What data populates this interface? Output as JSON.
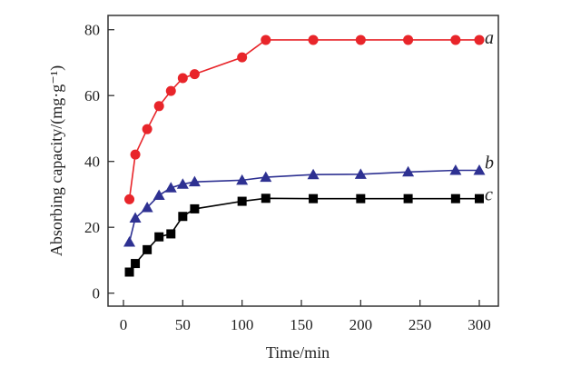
{
  "chart_data": {
    "type": "line",
    "title": "",
    "xlabel": "Time/min",
    "ylabel": "Absorbing capacity/(mg·g⁻¹)",
    "xlim": [
      0,
      300
    ],
    "ylim": [
      0,
      80
    ],
    "xticks": [
      0,
      50,
      100,
      150,
      200,
      250,
      300
    ],
    "yticks": [
      0,
      20,
      40,
      60,
      80
    ],
    "grid": false,
    "x": [
      5,
      10,
      20,
      30,
      40,
      50,
      60,
      100,
      120,
      160,
      200,
      240,
      280,
      300
    ],
    "series": [
      {
        "name": "a",
        "color": "#e8252a",
        "marker": "circle",
        "values": [
          28.5,
          42.1,
          49.8,
          56.8,
          61.4,
          65.3,
          66.5,
          71.6,
          76.9,
          76.9,
          76.9,
          76.9,
          76.9,
          76.9
        ]
      },
      {
        "name": "b",
        "color": "#2e3192",
        "marker": "triangle",
        "values": [
          15.5,
          22.8,
          26.0,
          29.7,
          32.0,
          33.1,
          33.8,
          34.3,
          35.2,
          36.0,
          36.1,
          36.8,
          37.3,
          37.3
        ]
      },
      {
        "name": "c",
        "color": "#000000",
        "marker": "square",
        "values": [
          6.4,
          9.0,
          13.2,
          17.1,
          18.0,
          23.3,
          25.6,
          27.9,
          28.8,
          28.7,
          28.7,
          28.7,
          28.7,
          28.7
        ]
      }
    ]
  }
}
